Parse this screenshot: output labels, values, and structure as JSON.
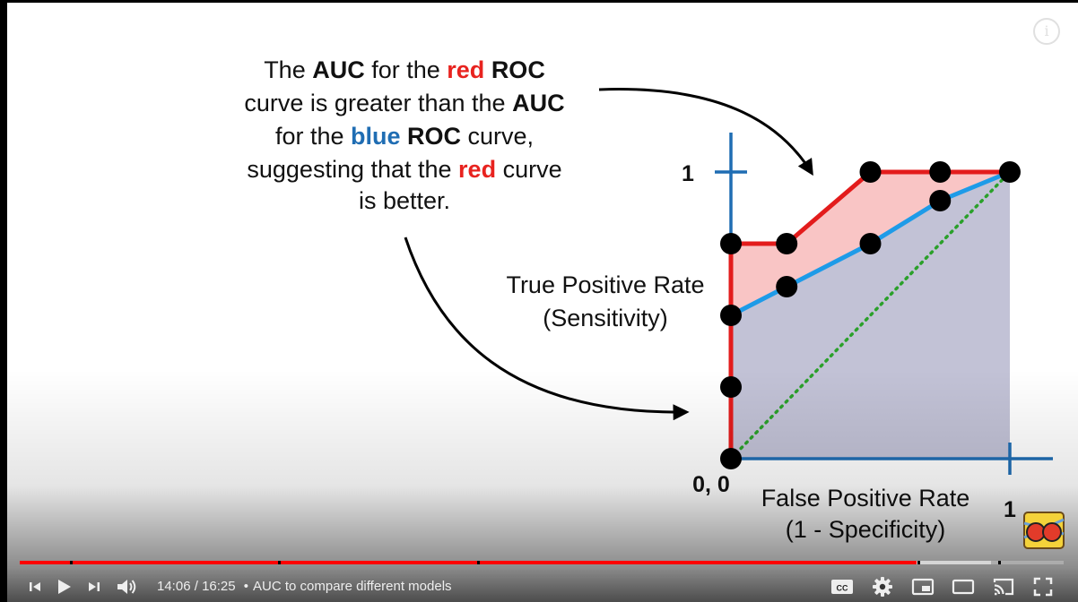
{
  "video": {
    "annotation": {
      "line1": [
        "The ",
        "AUC",
        " for the ",
        "red",
        " ",
        "ROC"
      ],
      "line2": [
        "curve is greater than the ",
        "AUC"
      ],
      "line3": [
        "for the ",
        "blue",
        " ",
        "ROC",
        " curve,"
      ],
      "line4": [
        "suggesting that the ",
        "red",
        " curve"
      ],
      "line5": "is better."
    },
    "colors": {
      "red": "#e8231f",
      "blue": "#1f6db3",
      "axis": "#1f6db3",
      "red_curve": "#e31c1c",
      "blue_curve": "#1e9be8",
      "diagonal": "#2aa02a"
    },
    "logo_icon": "statquest-logo-icon"
  },
  "chart_data": {
    "type": "line",
    "xlabel": [
      "False Positive Rate",
      "(1 - Specificity)"
    ],
    "ylabel": [
      "True Positive Rate",
      "(Sensitivity)"
    ],
    "tick_labels": {
      "origin": "0, 0",
      "x_end": "1",
      "y_end": "1"
    },
    "xlim": [
      0,
      1
    ],
    "ylim": [
      0,
      1
    ],
    "series": [
      {
        "color": "red",
        "x": [
          0,
          0,
          0,
          0,
          0.2,
          0.5,
          0.75,
          1
        ],
        "y": [
          0,
          0.25,
          0.5,
          0.75,
          0.75,
          1,
          1,
          1
        ]
      },
      {
        "color": "blue",
        "x": [
          0,
          0,
          0,
          0.2,
          0.5,
          0.75,
          1
        ],
        "y": [
          0,
          0.25,
          0.5,
          0.6,
          0.75,
          0.9,
          1
        ]
      }
    ],
    "diagonal": {
      "x": [
        0,
        1
      ],
      "y": [
        0,
        1
      ],
      "style": "dotted"
    }
  },
  "player": {
    "time_current": "14:06",
    "time_separator": "/",
    "time_total": "16:25",
    "chapter_bullet": "•",
    "chapter_title": "AUC to compare different models",
    "played_fraction": 0.859,
    "buffered_fraction": 0.93,
    "chapter_markers": [
      0.048,
      0.247,
      0.438,
      0.86,
      0.937
    ],
    "icons": {
      "prev": "skip-previous-icon",
      "play": "play-icon",
      "next": "skip-next-icon",
      "volume": "volume-icon",
      "cc": "closed-captions-icon",
      "settings": "gear-icon",
      "miniplayer": "miniplayer-icon",
      "theater": "theater-mode-icon",
      "cast": "cast-icon",
      "fullscreen": "fullscreen-icon",
      "info": "info-icon"
    },
    "cc_label": "CC",
    "info_label": "i"
  }
}
